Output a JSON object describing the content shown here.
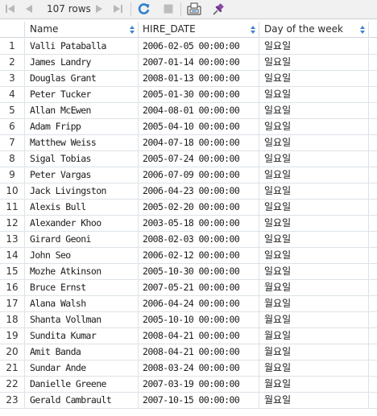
{
  "toolbar": {
    "row_count": "107 rows",
    "icons": [
      "first-page-icon",
      "prev-page-icon",
      "next-page-icon",
      "last-page-icon",
      "refresh-icon",
      "stop-icon",
      "export-icon",
      "pin-icon"
    ],
    "colors": {
      "refresh": "#2f7fcf",
      "pin": "#8a4aa8",
      "disabled": "#b8b8b8"
    }
  },
  "columns": [
    "Name",
    "HIRE_DATE",
    "Day of the week"
  ],
  "rows": [
    {
      "num": "1",
      "name": "Valli Pataballa",
      "date": "2006-02-05 00:00:00",
      "day": "일요일"
    },
    {
      "num": "2",
      "name": "James Landry",
      "date": "2007-01-14 00:00:00",
      "day": "일요일"
    },
    {
      "num": "3",
      "name": "Douglas Grant",
      "date": "2008-01-13 00:00:00",
      "day": "일요일"
    },
    {
      "num": "4",
      "name": "Peter Tucker",
      "date": "2005-01-30 00:00:00",
      "day": "일요일"
    },
    {
      "num": "5",
      "name": "Allan McEwen",
      "date": "2004-08-01 00:00:00",
      "day": "일요일"
    },
    {
      "num": "6",
      "name": "Adam Fripp",
      "date": "2005-04-10 00:00:00",
      "day": "일요일"
    },
    {
      "num": "7",
      "name": "Matthew Weiss",
      "date": "2004-07-18 00:00:00",
      "day": "일요일"
    },
    {
      "num": "8",
      "name": "Sigal Tobias",
      "date": "2005-07-24 00:00:00",
      "day": "일요일"
    },
    {
      "num": "9",
      "name": "Peter Vargas",
      "date": "2006-07-09 00:00:00",
      "day": "일요일"
    },
    {
      "num": "10",
      "name": "Jack Livingston",
      "date": "2006-04-23 00:00:00",
      "day": "일요일"
    },
    {
      "num": "11",
      "name": "Alexis Bull",
      "date": "2005-02-20 00:00:00",
      "day": "일요일"
    },
    {
      "num": "12",
      "name": "Alexander Khoo",
      "date": "2003-05-18 00:00:00",
      "day": "일요일"
    },
    {
      "num": "13",
      "name": "Girard Geoni",
      "date": "2008-02-03 00:00:00",
      "day": "일요일"
    },
    {
      "num": "14",
      "name": "John Seo",
      "date": "2006-02-12 00:00:00",
      "day": "일요일"
    },
    {
      "num": "15",
      "name": "Mozhe Atkinson",
      "date": "2005-10-30 00:00:00",
      "day": "일요일"
    },
    {
      "num": "16",
      "name": "Bruce Ernst",
      "date": "2007-05-21 00:00:00",
      "day": "월요일"
    },
    {
      "num": "17",
      "name": "Alana Walsh",
      "date": "2006-04-24 00:00:00",
      "day": "월요일"
    },
    {
      "num": "18",
      "name": "Shanta Vollman",
      "date": "2005-10-10 00:00:00",
      "day": "월요일"
    },
    {
      "num": "19",
      "name": "Sundita Kumar",
      "date": "2008-04-21 00:00:00",
      "day": "월요일"
    },
    {
      "num": "20",
      "name": "Amit Banda",
      "date": "2008-04-21 00:00:00",
      "day": "월요일"
    },
    {
      "num": "21",
      "name": "Sundar Ande",
      "date": "2008-03-24 00:00:00",
      "day": "월요일"
    },
    {
      "num": "22",
      "name": "Danielle Greene",
      "date": "2007-03-19 00:00:00",
      "day": "월요일"
    },
    {
      "num": "23",
      "name": "Gerald Cambrault",
      "date": "2007-10-15 00:00:00",
      "day": "월요일"
    }
  ]
}
